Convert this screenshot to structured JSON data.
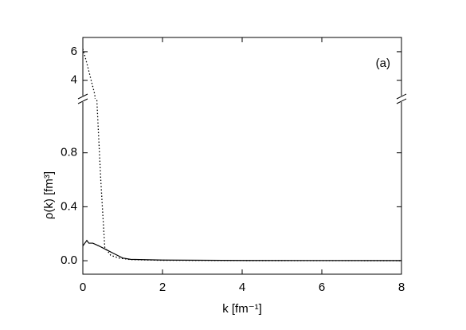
{
  "chart_data": {
    "type": "line",
    "annotation": "(a)",
    "xlabel": "k [fm⁻¹]",
    "ylabel": "ρ(k) [fm³]",
    "xlim": [
      0,
      8
    ],
    "xticks": [
      0,
      2,
      4,
      6,
      8
    ],
    "ylim": [
      -0.1,
      1.2
    ],
    "yticks": [
      {
        "value": 0,
        "label": "0.0"
      },
      0.4,
      0.8
    ],
    "y_break": {
      "ylim": [
        2.7,
        7
      ],
      "yticks": [
        4,
        6
      ]
    },
    "series": [
      {
        "name": "solid",
        "color": "#000000",
        "style": "solid",
        "x": [
          0,
          0.05,
          0.1,
          0.15,
          0.25,
          0.4,
          0.6,
          0.8,
          1.0,
          1.2,
          2,
          4,
          8
        ],
        "values": [
          0.11,
          0.13,
          0.15,
          0.13,
          0.13,
          0.11,
          0.08,
          0.05,
          0.02,
          0.01,
          0.005,
          0.002,
          0.001
        ]
      },
      {
        "name": "dotted",
        "color": "#000000",
        "style": "dotted",
        "x": [
          0,
          0.1,
          0.2,
          0.3,
          0.35,
          0.45,
          0.55,
          0.7,
          0.9,
          1.2,
          2,
          4,
          8
        ],
        "values": [
          6.2,
          5.2,
          4.1,
          3.0,
          1.2,
          0.6,
          0.1,
          0.04,
          0.02,
          0.008,
          0.003,
          0.001,
          0
        ]
      }
    ]
  }
}
